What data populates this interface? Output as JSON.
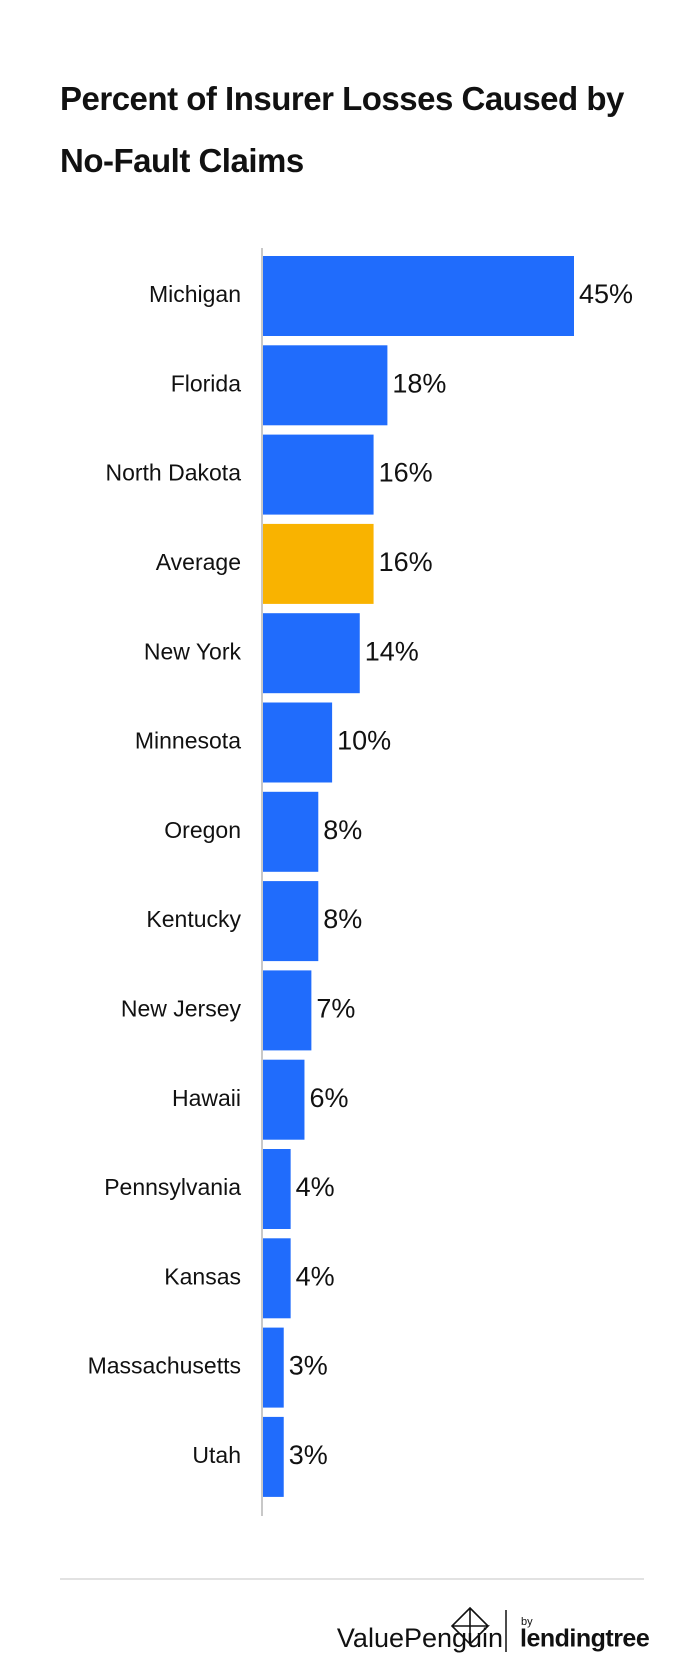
{
  "chart_data": {
    "type": "hbar",
    "title": "Percent of Insurer Losses Caused by No-Fault Claims",
    "categories": [
      "Michigan",
      "Florida",
      "North Dakota",
      "Average",
      "New York",
      "Minnesota",
      "Oregon",
      "Kentucky",
      "New Jersey",
      "Hawaii",
      "Pennsylvania",
      "Kansas",
      "Massachusetts",
      "Utah"
    ],
    "values": [
      45,
      18,
      16,
      16,
      14,
      10,
      8,
      8,
      7,
      6,
      4,
      4,
      3,
      3
    ],
    "value_labels": [
      "45%",
      "18%",
      "16%",
      "16%",
      "14%",
      "10%",
      "8%",
      "8%",
      "7%",
      "6%",
      "4%",
      "4%",
      "3%",
      "3%"
    ],
    "colors": [
      "#206cfc",
      "#206cfc",
      "#206cfc",
      "#f9b300",
      "#206cfc",
      "#206cfc",
      "#206cfc",
      "#206cfc",
      "#206cfc",
      "#206cfc",
      "#206cfc",
      "#206cfc",
      "#206cfc",
      "#206cfc"
    ]
  },
  "footer": {
    "brand": "ValuePenguin",
    "by": "by",
    "partner": "lendingtree"
  }
}
